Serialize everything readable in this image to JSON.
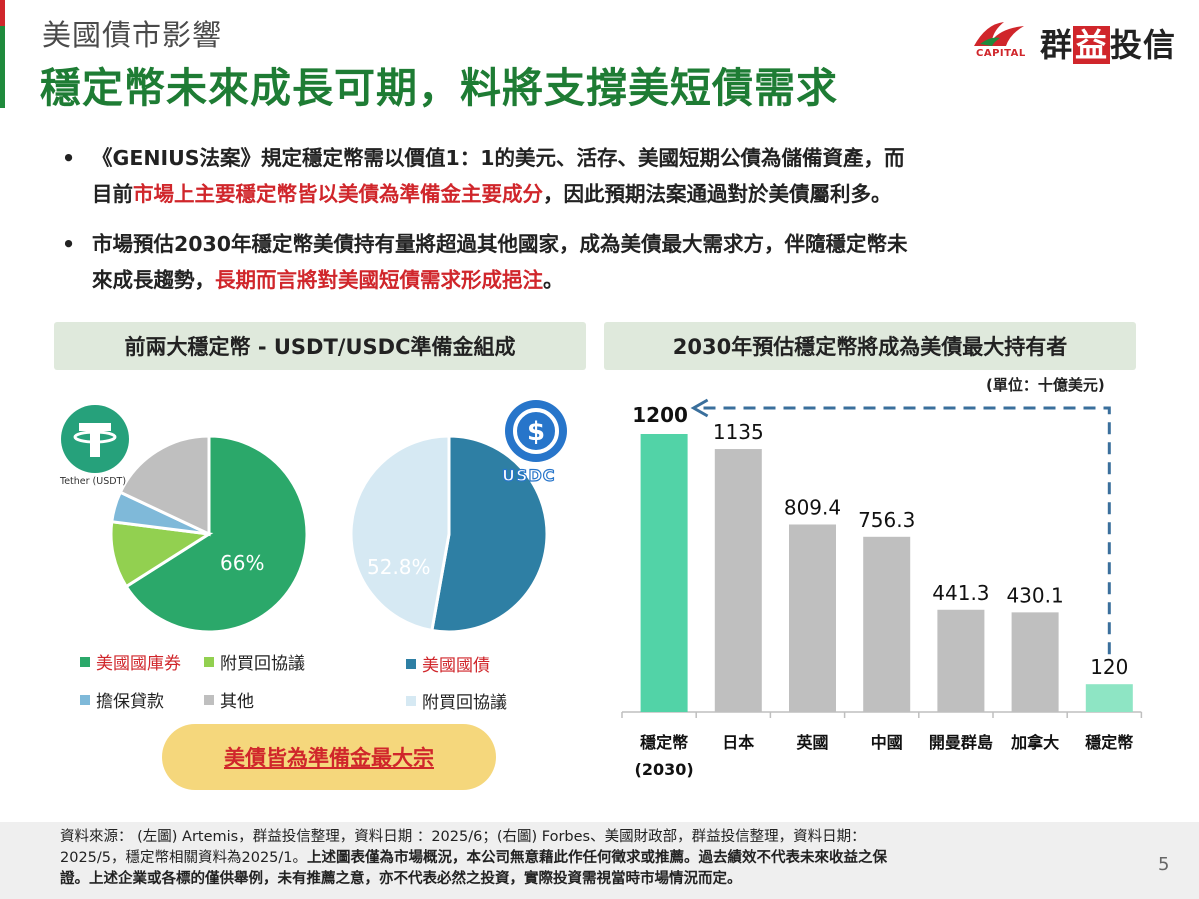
{
  "header": {
    "subtitle": "美國債市影響",
    "title": "穩定幣未來成長可期，料將支撐美短債需求",
    "logo_caption": "CAPITAL",
    "logo_text_pre": "群",
    "logo_text_hl": "益",
    "logo_text_post": "投信"
  },
  "bullets": [
    {
      "marker": "•",
      "line1": "《GENIUS法案》規定穩定幣需以價值1：1的美元、活存、美國短期公債為儲備資產，而",
      "line2_pre": "目前",
      "line2_red": "市場上主要穩定幣皆以美債為準備金主要成分",
      "line2_post": "，因此預期法案通過對於美債屬利多。"
    },
    {
      "marker": "•",
      "line1": "市場預估2030年穩定幣美債持有量將超過其他國家，成為美債最大需求方，伴隨穩定幣未",
      "line2_pre": "來成長趨勢，",
      "line2_red": "長期而言將對美國短債需求形成挹注",
      "line2_post": "。"
    }
  ],
  "left_panel": {
    "heading": "前兩大穩定幣 - USDT/USDC準備金組成",
    "tether_label": "Tether (USDT)",
    "usdc_label": "USDC",
    "callout": "美債皆為準備金最大宗"
  },
  "right_panel": {
    "heading": "2030年預估穩定幣將成為美債最大持有者",
    "unit": "(單位：十億美元)"
  },
  "chart_data": [
    {
      "type": "pie",
      "name": "USDT",
      "slices": [
        {
          "label": "美國國庫券",
          "value": 66,
          "color": "#2ba86a"
        },
        {
          "label": "附買回協議",
          "value": 11,
          "color": "#92d050"
        },
        {
          "label": "擔保貸款",
          "value": 5,
          "color": "#7fb9d9"
        },
        {
          "label": "其他",
          "value": 18,
          "color": "#bfbfbf"
        }
      ],
      "data_label": "66%"
    },
    {
      "type": "pie",
      "name": "USDC",
      "slices": [
        {
          "label": "美國國債",
          "value": 52.8,
          "color": "#2e7fa4"
        },
        {
          "label": "附買回協議",
          "value": 47.2,
          "color": "#d6e9f3"
        }
      ],
      "data_label": "52.8%"
    },
    {
      "type": "bar",
      "categories": [
        "穩定幣\n(2030)",
        "日本",
        "英國",
        "中國",
        "開曼群島",
        "加拿大",
        "穩定幣"
      ],
      "values": [
        1200,
        1135,
        809.4,
        756.3,
        441.3,
        430.1,
        120
      ],
      "value_labels": [
        "1200",
        "1135",
        "809.4",
        "756.3",
        "441.3",
        "430.1",
        "120"
      ],
      "colors": [
        "#52d3a7",
        "#bfbfbf",
        "#bfbfbf",
        "#bfbfbf",
        "#bfbfbf",
        "#bfbfbf",
        "#8ee5c4"
      ],
      "ylim": [
        0,
        1200
      ],
      "grid": false
    }
  ],
  "footer": {
    "line1": "資料來源： (左圖) Artemis，群益投信整理，資料日期 ：2025/6；(右圖) Forbes、美國財政部，群益投信整理，資料日期：",
    "line2_pre": "2025/5，穩定幣相關資料為2025/1。",
    "line2_bold": "上述圖表僅為市場概況，本公司無意藉此作任何徵求或推薦。過去績效不代表未來收益之保",
    "line3_bold": "證。上述企業或各標的僅供舉例，未有推薦之意，亦不代表必然之投資，實際投資需視當時市場情況而定。",
    "page_number": "5"
  }
}
